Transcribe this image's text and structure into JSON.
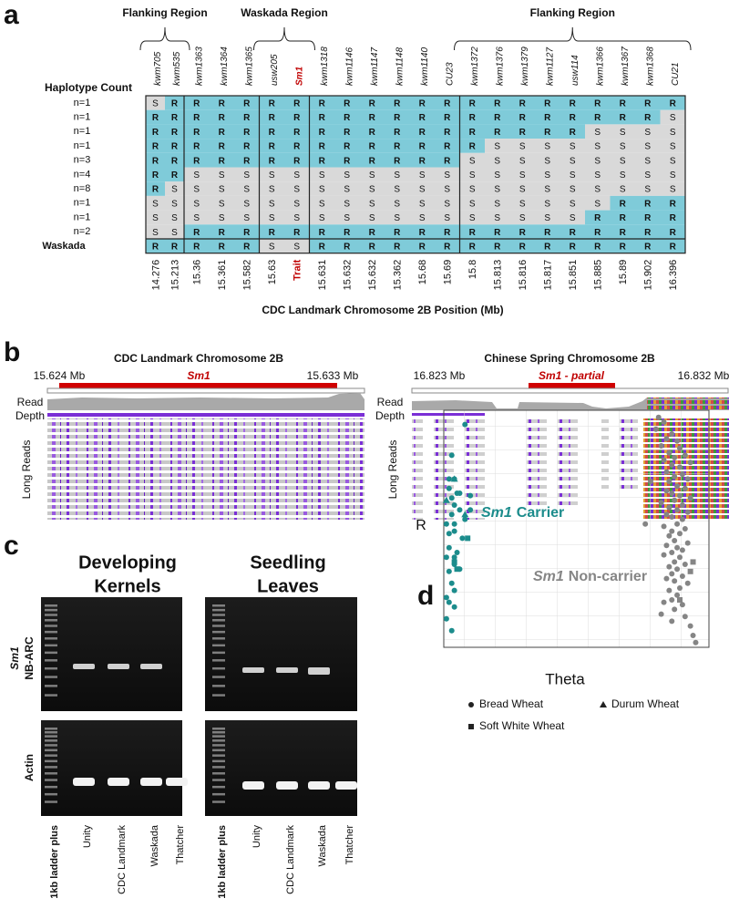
{
  "figure": {
    "panel_a": {
      "letter": "a",
      "region_labels": [
        "Flanking Region",
        "Waskada Region",
        "Flanking Region"
      ],
      "count_header": "Haplotype Count",
      "markers": [
        "kwm705",
        "kwm535",
        "kwm1363",
        "kwm1364",
        "kwm1365",
        "usw205",
        "Sm1",
        "kwm1318",
        "kwm1146",
        "kwm1147",
        "kwm1148",
        "kwm1140",
        "CU23",
        "kwm1372",
        "kwm1376",
        "kwm1379",
        "kwm1127",
        "usw114",
        "kwm1366",
        "kwm1367",
        "kwm1368",
        "CU21"
      ],
      "colors": {
        "R": "#7fcbd9",
        "S": "#d9d9d9"
      },
      "rows": [
        {
          "label": "n=1",
          "cells": [
            "S",
            "R",
            "R",
            "R",
            "R",
            "R",
            "R",
            "R",
            "R",
            "R",
            "R",
            "R",
            "R",
            "R",
            "R",
            "R",
            "R",
            "R",
            "R",
            "R",
            "R",
            "R"
          ]
        },
        {
          "label": "n=1",
          "cells": [
            "R",
            "R",
            "R",
            "R",
            "R",
            "R",
            "R",
            "R",
            "R",
            "R",
            "R",
            "R",
            "R",
            "R",
            "R",
            "R",
            "R",
            "R",
            "R",
            "R",
            "R",
            "S"
          ]
        },
        {
          "label": "n=1",
          "cells": [
            "R",
            "R",
            "R",
            "R",
            "R",
            "R",
            "R",
            "R",
            "R",
            "R",
            "R",
            "R",
            "R",
            "R",
            "R",
            "R",
            "R",
            "R",
            "S",
            "S",
            "S",
            "S"
          ]
        },
        {
          "label": "n=1",
          "cells": [
            "R",
            "R",
            "R",
            "R",
            "R",
            "R",
            "R",
            "R",
            "R",
            "R",
            "R",
            "R",
            "R",
            "R",
            "S",
            "S",
            "S",
            "S",
            "S",
            "S",
            "S",
            "S"
          ]
        },
        {
          "label": "n=3",
          "cells": [
            "R",
            "R",
            "R",
            "R",
            "R",
            "R",
            "R",
            "R",
            "R",
            "R",
            "R",
            "R",
            "R",
            "S",
            "S",
            "S",
            "S",
            "S",
            "S",
            "S",
            "S",
            "S"
          ]
        },
        {
          "label": "n=4",
          "cells": [
            "R",
            "R",
            "S",
            "S",
            "S",
            "S",
            "S",
            "S",
            "S",
            "S",
            "S",
            "S",
            "S",
            "S",
            "S",
            "S",
            "S",
            "S",
            "S",
            "S",
            "S",
            "S"
          ]
        },
        {
          "label": "n=8",
          "cells": [
            "R",
            "S",
            "S",
            "S",
            "S",
            "S",
            "S",
            "S",
            "S",
            "S",
            "S",
            "S",
            "S",
            "S",
            "S",
            "S",
            "S",
            "S",
            "S",
            "S",
            "S",
            "S"
          ]
        },
        {
          "label": "n=1",
          "cells": [
            "S",
            "S",
            "S",
            "S",
            "S",
            "S",
            "S",
            "S",
            "S",
            "S",
            "S",
            "S",
            "S",
            "S",
            "S",
            "S",
            "S",
            "S",
            "S",
            "R",
            "R",
            "R"
          ]
        },
        {
          "label": "n=1",
          "cells": [
            "S",
            "S",
            "S",
            "S",
            "S",
            "S",
            "S",
            "S",
            "S",
            "S",
            "S",
            "S",
            "S",
            "S",
            "S",
            "S",
            "S",
            "S",
            "R",
            "R",
            "R",
            "R"
          ]
        },
        {
          "label": "n=2",
          "cells": [
            "S",
            "S",
            "R",
            "R",
            "R",
            "R",
            "R",
            "R",
            "R",
            "R",
            "R",
            "R",
            "R",
            "R",
            "R",
            "R",
            "R",
            "R",
            "R",
            "R",
            "R",
            "R"
          ]
        },
        {
          "label": "Waskada",
          "cells": [
            "R",
            "R",
            "R",
            "R",
            "R",
            "S",
            "S",
            "R",
            "R",
            "R",
            "R",
            "R",
            "R",
            "R",
            "R",
            "R",
            "R",
            "R",
            "R",
            "R",
            "R",
            "R"
          ]
        }
      ],
      "positions": [
        "14.276",
        "15.213",
        "15.36",
        "15.361",
        "15.582",
        "15.63",
        "Trait",
        "15.631",
        "15.632",
        "15.632",
        "15.362",
        "15.68",
        "15.69",
        "15.8",
        "15.813",
        "15.816",
        "15.817",
        "15.851",
        "15.885",
        "15.89",
        "15.902",
        "16.396"
      ],
      "axis_title": "CDC Landmark Chromosome 2B Position (Mb)"
    },
    "panel_b": {
      "letter": "b",
      "left": {
        "title": "CDC Landmark Chromosome 2B",
        "start": "15.624 Mb",
        "gene": "Sm1",
        "end": "15.633 Mb",
        "read_depth": [
          "Read",
          "Depth"
        ],
        "long_reads": "Long Reads"
      },
      "right": {
        "title": "Chinese Spring Chromosome 2B",
        "start": "16.823 Mb",
        "gene": "Sm1 - partial",
        "end": "16.832 Mb",
        "read_depth": [
          "Read",
          "Depth"
        ],
        "long_reads": "Long Reads"
      }
    },
    "panel_c": {
      "letter": "c",
      "left_title": [
        "Developing",
        "Kernels"
      ],
      "right_title": [
        "Seedling",
        "Leaves"
      ],
      "top_label": [
        "Sm1",
        "NB-ARC"
      ],
      "bottom_label": "Actin",
      "left_lanes": [
        "1kb ladder plus",
        "Unity",
        "CDC Landmark",
        "Waskada",
        "Thatcher"
      ],
      "right_lanes": [
        "1kb ladder plus",
        "Unity",
        "CDC Landmark",
        "Waskada",
        "Thatcher"
      ]
    }
  },
  "chart_data": {
    "type": "scatter",
    "panel_label": "d",
    "xlabel": "Theta",
    "ylabel": "R",
    "xlim": [
      0,
      1
    ],
    "ylim": [
      0,
      1
    ],
    "grid": true,
    "legend": [
      {
        "marker": "circle",
        "label": "Bread Wheat"
      },
      {
        "marker": "triangle",
        "label": "Durum Wheat"
      },
      {
        "marker": "square",
        "label": "Soft White Wheat"
      }
    ],
    "groups": [
      {
        "label": [
          "Sm1",
          "Carrier"
        ],
        "color": "#1c8c8c",
        "series": [
          {
            "marker": "circle",
            "x": [
              0.08,
              0.03,
              0.04,
              0.02,
              0.03,
              0.02,
              0.05,
              0.06,
              0.1,
              0.04,
              0.06,
              0.1,
              0.03,
              0.01,
              0.04,
              0.08,
              0.02,
              0.04,
              0.07,
              0.02,
              0.05,
              0.01,
              0.04,
              0.04,
              0.02,
              0.06,
              0.03,
              0.04,
              0.01,
              0.02,
              0.04,
              0.01,
              0.03
            ],
            "y": [
              0.94,
              0.81,
              0.71,
              0.71,
              0.63,
              0.67,
              0.65,
              0.65,
              0.64,
              0.6,
              0.58,
              0.58,
              0.56,
              0.52,
              0.52,
              0.54,
              0.48,
              0.49,
              0.46,
              0.42,
              0.4,
              0.38,
              0.38,
              0.35,
              0.32,
              0.33,
              0.27,
              0.24,
              0.21,
              0.19,
              0.17,
              0.12,
              0.07
            ]
          },
          {
            "marker": "triangle",
            "x": [
              0.04,
              0.01,
              0.08
            ],
            "y": [
              0.71,
              0.62,
              0.56
            ]
          },
          {
            "marker": "square",
            "x": [
              0.09,
              0.04,
              0.05
            ],
            "y": [
              0.46,
              0.36,
              0.33
            ]
          }
        ]
      },
      {
        "label": [
          "Sm1",
          "Non-carrier"
        ],
        "color": "#858585",
        "series": [
          {
            "marker": "circle",
            "x": [
              0.81,
              0.83,
              0.8,
              0.86,
              0.84,
              0.88,
              0.82,
              0.89,
              0.85,
              0.91,
              0.87,
              0.83,
              0.93,
              0.86,
              0.89,
              0.84,
              0.9,
              0.87,
              0.92,
              0.85,
              0.88,
              0.91,
              0.84,
              0.86,
              0.89,
              0.93,
              0.87,
              0.82,
              0.9,
              0.85,
              0.88,
              0.92,
              0.84,
              0.86,
              0.9,
              0.88,
              0.83,
              0.91,
              0.86,
              0.89,
              0.85,
              0.87,
              0.92,
              0.84,
              0.88,
              0.9,
              0.86,
              0.83,
              0.89,
              0.87,
              0.91,
              0.85,
              0.88,
              0.86,
              0.9,
              0.84,
              0.87,
              0.92,
              0.89,
              0.85,
              0.88,
              0.86,
              0.83,
              0.9,
              0.87,
              0.82,
              0.91,
              0.86,
              0.93,
              0.94,
              0.95,
              0.76,
              0.78
            ],
            "y": [
              0.97,
              0.95,
              0.92,
              0.9,
              0.88,
              0.87,
              0.85,
              0.84,
              0.82,
              0.81,
              0.8,
              0.79,
              0.78,
              0.77,
              0.76,
              0.74,
              0.73,
              0.72,
              0.71,
              0.7,
              0.68,
              0.67,
              0.66,
              0.65,
              0.64,
              0.63,
              0.62,
              0.61,
              0.6,
              0.59,
              0.58,
              0.57,
              0.56,
              0.55,
              0.54,
              0.52,
              0.51,
              0.5,
              0.49,
              0.48,
              0.47,
              0.45,
              0.44,
              0.43,
              0.42,
              0.41,
              0.4,
              0.39,
              0.38,
              0.36,
              0.35,
              0.34,
              0.33,
              0.31,
              0.3,
              0.29,
              0.28,
              0.27,
              0.25,
              0.24,
              0.22,
              0.2,
              0.19,
              0.18,
              0.16,
              0.14,
              0.13,
              0.11,
              0.09,
              0.05,
              0.02,
              0.52,
              0.7
            ]
          },
          {
            "marker": "square",
            "x": [
              0.94,
              0.93,
              0.89
            ],
            "y": [
              0.36,
              0.32,
              0.2
            ]
          }
        ]
      }
    ]
  }
}
